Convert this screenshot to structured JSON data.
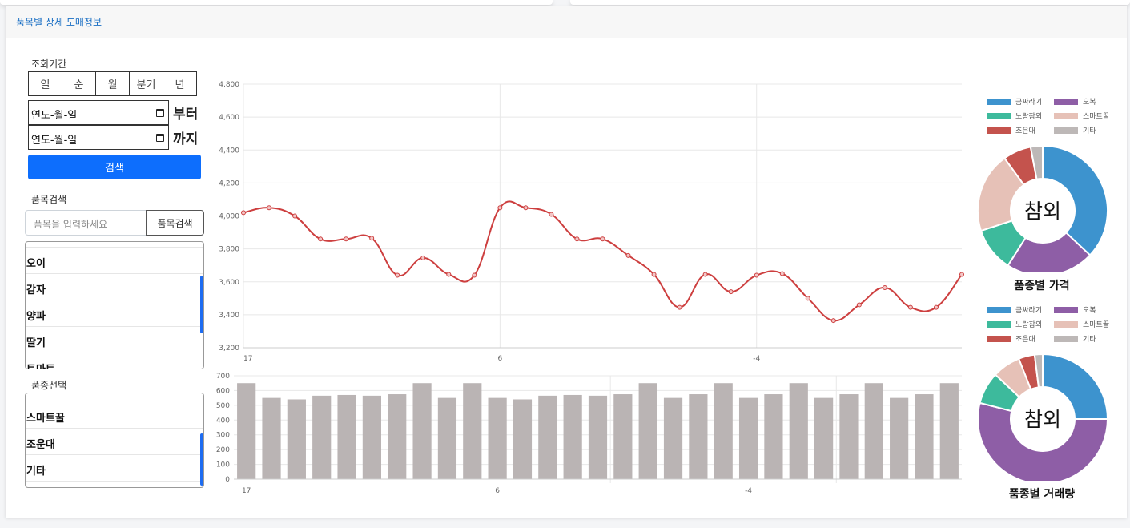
{
  "header": {
    "title": "품목별 상세 도매정보"
  },
  "period": {
    "label": "조회기간",
    "buttons": [
      "일",
      "순",
      "월",
      "분기",
      "년"
    ],
    "from_placeholder": "연도-월-일",
    "to_placeholder": "연도-월-일",
    "from_suffix": "부터",
    "to_suffix": "까지",
    "search_label": "검색"
  },
  "item_search": {
    "label": "품목검색",
    "placeholder": "품목을 입력하세요",
    "button_label": "품목검색",
    "items": [
      "오이",
      "감자",
      "양파",
      "딸기",
      "토마토"
    ]
  },
  "variety": {
    "label": "품종선택",
    "items": [
      "스마트꿀",
      "조운대",
      "기타"
    ]
  },
  "colors": {
    "line": "#cd3f3f",
    "bar": "#bab4b4",
    "accent": "#0d6efd",
    "pie": [
      "#3d93ce",
      "#8e5ea6",
      "#3dba9c",
      "#e6c1b7",
      "#c4534d",
      "#bdb8b7"
    ]
  },
  "chart_data": [
    {
      "type": "line",
      "x_tick_labels": [
        "17",
        "6",
        "-4"
      ],
      "values": [
        4020,
        4050,
        4000,
        3860,
        3860,
        3865,
        3640,
        3745,
        3645,
        3640,
        4050,
        4050,
        4010,
        3860,
        3860,
        3760,
        3645,
        3445,
        3645,
        3540,
        3640,
        3650,
        3500,
        3365,
        3460,
        3565,
        3445,
        3445,
        3645
      ],
      "ylim": [
        3200,
        4800
      ],
      "y_ticks": [
        "3,200",
        "3,400",
        "3,600",
        "3,800",
        "4,000",
        "4,200",
        "4,400",
        "4,600",
        "4,800"
      ],
      "grid": true
    },
    {
      "type": "bar",
      "x_tick_labels": [
        "17",
        "6",
        "-4"
      ],
      "values": [
        650,
        550,
        540,
        565,
        570,
        565,
        575,
        650,
        550,
        650,
        550,
        540,
        565,
        570,
        565,
        575,
        650,
        550,
        575,
        650,
        550,
        575,
        650,
        550,
        575,
        650,
        550,
        575,
        650
      ],
      "ylim": [
        0,
        700
      ],
      "y_ticks": [
        "0",
        "100",
        "200",
        "300",
        "400",
        "500",
        "600",
        "700"
      ],
      "grid": true
    },
    {
      "type": "pie",
      "title": "품종별 가격",
      "center_text": "참외",
      "legend": [
        "금싸라기",
        "오복",
        "노랑참외",
        "스마트꿀",
        "조은대",
        "기타"
      ],
      "legend_placement": "top",
      "values": [
        37,
        22,
        11,
        20,
        7,
        3
      ]
    },
    {
      "type": "pie",
      "title": "품종별 거래량",
      "center_text": "참외",
      "legend": [
        "금싸라기",
        "오복",
        "노랑참외",
        "스마트꿀",
        "조은대",
        "기타"
      ],
      "legend_placement": "top",
      "values": [
        25,
        54,
        8,
        7,
        4,
        2
      ]
    }
  ]
}
